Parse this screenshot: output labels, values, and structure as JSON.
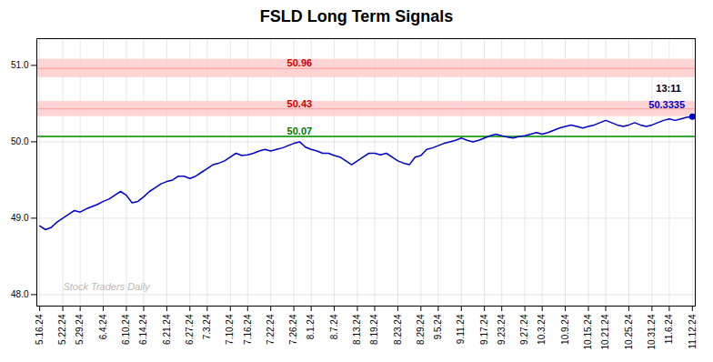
{
  "chart_data": {
    "type": "line",
    "title": "FSLD Long Term Signals",
    "categories": [
      "5.16.24",
      null,
      null,
      null,
      "5.22.24",
      null,
      null,
      "5.29.24",
      null,
      null,
      null,
      "6.4.24",
      null,
      null,
      null,
      "6.10.24",
      null,
      null,
      "6.14.24",
      null,
      null,
      null,
      "6.21.24",
      null,
      null,
      null,
      "6.27.24",
      null,
      null,
      "7.3.24",
      null,
      null,
      null,
      "7.10.24",
      null,
      null,
      "7.16.24",
      null,
      null,
      null,
      "7.22.24",
      null,
      null,
      null,
      "7.26.24",
      null,
      null,
      "8.1.24",
      null,
      null,
      null,
      "8.7.24",
      null,
      null,
      null,
      "8.13.24",
      null,
      null,
      "8.19.24",
      null,
      null,
      null,
      "8.23.24",
      null,
      null,
      null,
      "8.29.24",
      null,
      null,
      "9.5.24",
      null,
      null,
      null,
      "9.11.24",
      null,
      null,
      null,
      "9.17.24",
      null,
      null,
      "9.23.24",
      null,
      null,
      null,
      "9.27.24",
      null,
      null,
      "10.3.24",
      null,
      null,
      null,
      "10.9.24",
      null,
      null,
      null,
      "10.15.24",
      null,
      null,
      "10.21.24",
      null,
      null,
      null,
      "10.25.24",
      null,
      null,
      null,
      "10.31.24",
      null,
      null,
      "11.6.24",
      null,
      null,
      null,
      "11.12.24"
    ],
    "values": [
      48.9,
      48.85,
      48.88,
      48.95,
      49.0,
      49.05,
      49.1,
      49.08,
      49.12,
      49.15,
      49.18,
      49.22,
      49.25,
      49.3,
      49.35,
      49.3,
      49.2,
      49.22,
      49.28,
      49.35,
      49.4,
      49.45,
      49.48,
      49.5,
      49.55,
      49.55,
      49.52,
      49.55,
      49.6,
      49.65,
      49.7,
      49.72,
      49.75,
      49.8,
      49.85,
      49.82,
      49.83,
      49.85,
      49.88,
      49.9,
      49.88,
      49.9,
      49.92,
      49.95,
      49.98,
      50.0,
      49.93,
      49.9,
      49.88,
      49.85,
      49.85,
      49.82,
      49.8,
      49.75,
      49.7,
      49.75,
      49.8,
      49.85,
      49.85,
      49.83,
      49.85,
      49.8,
      49.75,
      49.72,
      49.7,
      49.8,
      49.82,
      49.9,
      49.92,
      49.95,
      49.98,
      50.0,
      50.02,
      50.05,
      50.02,
      50.0,
      50.02,
      50.05,
      50.08,
      50.1,
      50.08,
      50.06,
      50.05,
      50.07,
      50.08,
      50.1,
      50.12,
      50.1,
      50.12,
      50.15,
      50.18,
      50.2,
      50.22,
      50.2,
      50.18,
      50.2,
      50.22,
      50.25,
      50.28,
      50.25,
      50.22,
      50.2,
      50.22,
      50.25,
      50.22,
      50.2,
      50.22,
      50.25,
      50.28,
      50.3,
      50.28,
      50.3,
      50.32,
      50.33
    ],
    "color": "#0000cc",
    "ylim": [
      47.85,
      51.35
    ],
    "yticks": [
      48,
      49,
      50,
      51
    ],
    "grid": true,
    "reference_lines": [
      {
        "y": 50.96,
        "label": "50.96",
        "color": "#ff9999",
        "label_color": "#cc0000",
        "band": [
          50.84,
          51.08
        ],
        "band_color": "#ffcccc"
      },
      {
        "y": 50.43,
        "label": "50.43",
        "color": "#ff9999",
        "label_color": "#cc0000",
        "band": [
          50.33,
          50.53
        ],
        "band_color": "#ffcccc"
      },
      {
        "y": 50.07,
        "label": "50.07",
        "color": "#33aa33",
        "label_color": "#007700"
      }
    ],
    "annotations": [
      {
        "text": "13:11",
        "color": "#000000"
      },
      {
        "text": "50.3335",
        "color": "#0000cc"
      }
    ],
    "watermark": {
      "text": "Stock Traders Daily",
      "color": "#bbbbbb"
    }
  }
}
